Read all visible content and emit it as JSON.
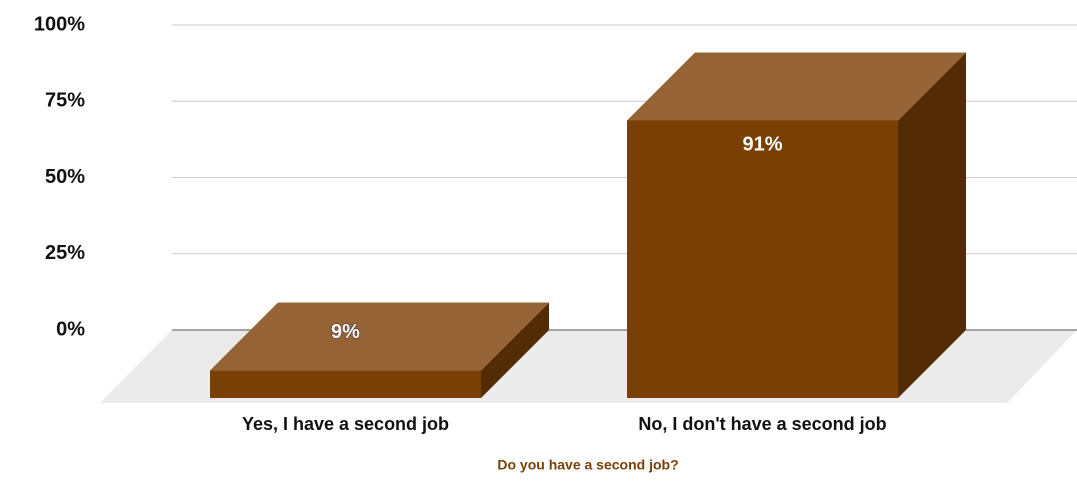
{
  "chart_data": {
    "type": "bar3d",
    "x_label": "Do you have a second job?",
    "categories": [
      "Yes, I have a second job",
      "No, I don't have a second job"
    ],
    "values": [
      9,
      91
    ],
    "value_labels": [
      "9%",
      "91%"
    ],
    "colors": {
      "front": "#7a3f04",
      "top": "#956336",
      "side": "#532b04"
    },
    "ylim": [
      0,
      100
    ],
    "yticks": [
      {
        "value": 0,
        "label": "0%"
      },
      {
        "value": 25,
        "label": "25%"
      },
      {
        "value": 50,
        "label": "50%"
      },
      {
        "value": 75,
        "label": "75%"
      },
      {
        "value": 100,
        "label": "100%"
      }
    ],
    "grid": true
  }
}
